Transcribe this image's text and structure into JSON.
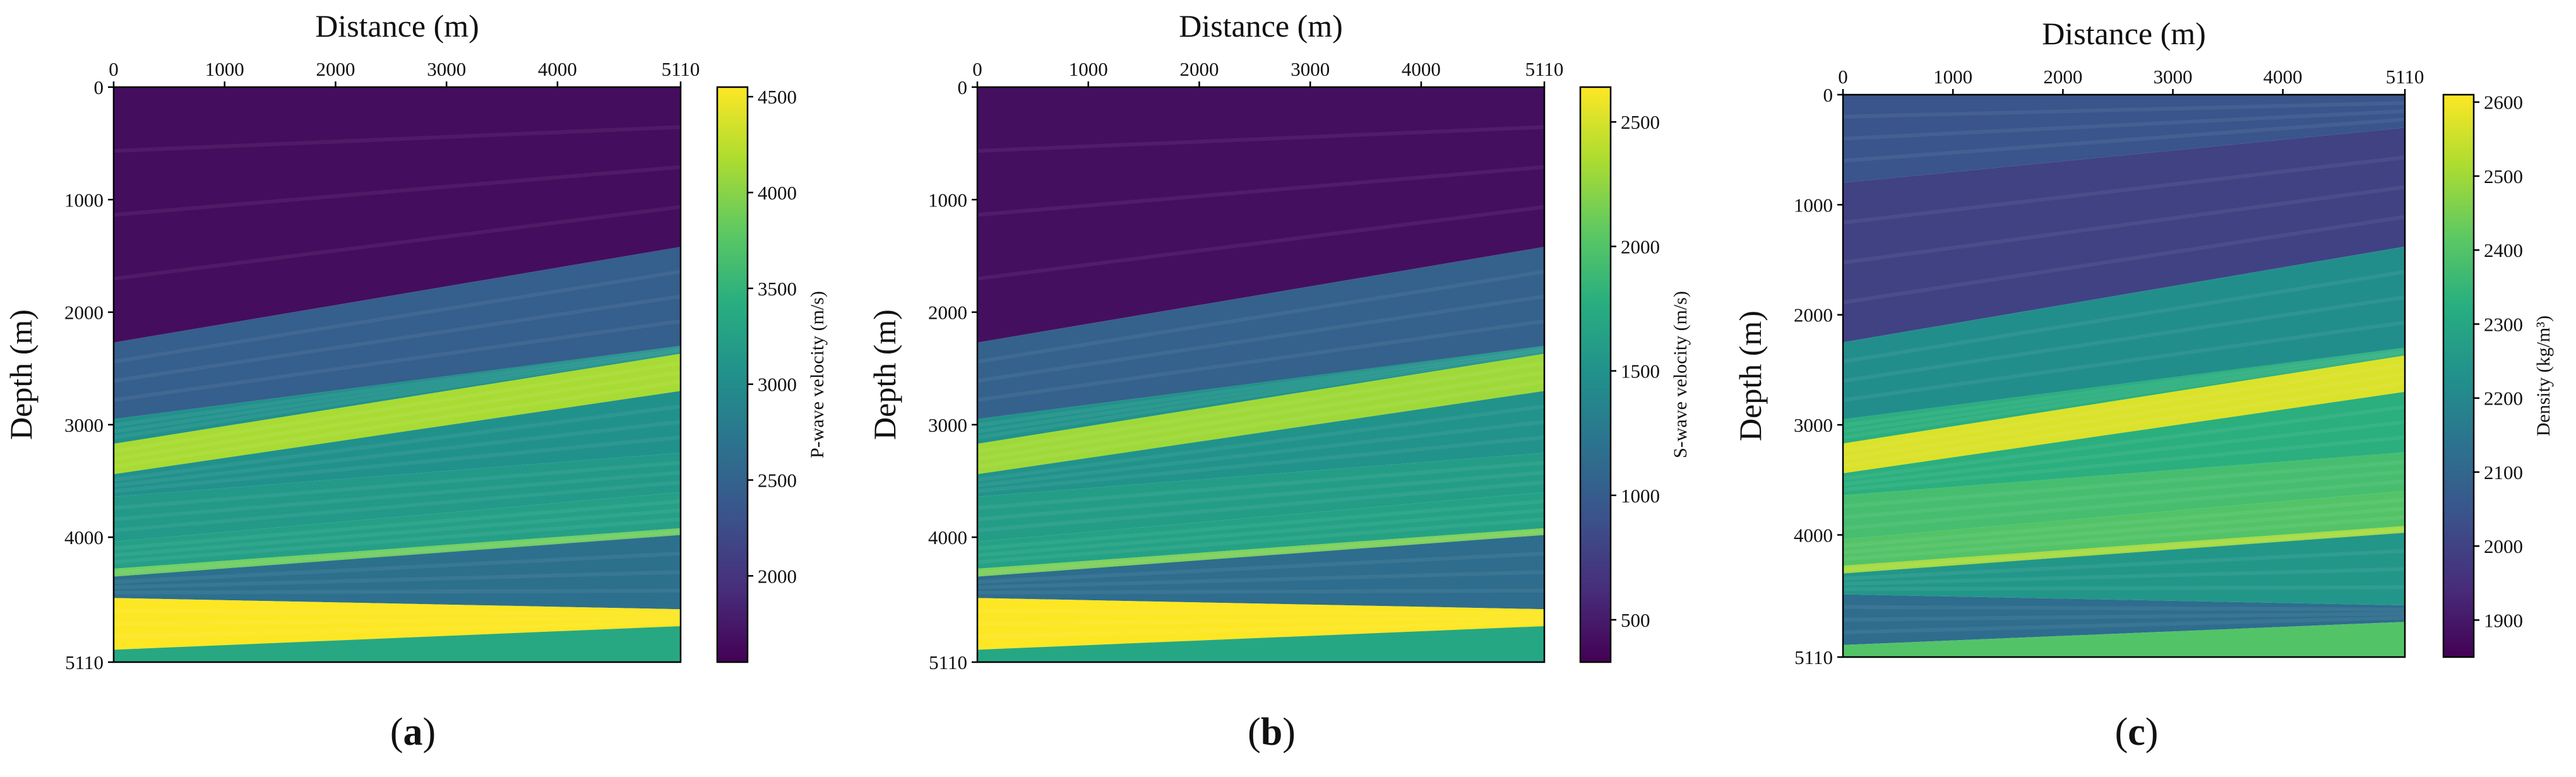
{
  "figure": {
    "panel_suffix": ")",
    "panel_prefix": "("
  },
  "chart_data": [
    {
      "type": "heatmap",
      "panel": "a",
      "title": "",
      "xlabel": "Distance (m)",
      "ylabel": "Depth (m)",
      "colorbar_label": "P-wave velocity (m/s)",
      "xlim": [
        0,
        5110
      ],
      "ylim": [
        5110,
        0
      ],
      "x_ticks": [
        0,
        1000,
        2000,
        3000,
        4000,
        5110
      ],
      "y_ticks": [
        0,
        1000,
        2000,
        3000,
        4000,
        5110
      ],
      "clim": [
        1550,
        4550
      ],
      "colorbar_ticks": [
        2000,
        2500,
        3000,
        3500,
        4000,
        4500
      ],
      "colormap": "viridis",
      "layers": [
        {
          "top_left": 0,
          "top_right": 0,
          "value": 1650
        },
        {
          "top_left": 2270,
          "top_right": 1420,
          "value": 2450
        },
        {
          "top_left": 2950,
          "top_right": 2300,
          "value": 3050
        },
        {
          "top_left": 3170,
          "top_right": 2370,
          "value": 4150
        },
        {
          "top_left": 3440,
          "top_right": 2700,
          "value": 3050
        },
        {
          "top_left": 3640,
          "top_right": 3250,
          "value": 3150
        },
        {
          "top_left": 4040,
          "top_right": 3600,
          "value": 3250
        },
        {
          "top_left": 4280,
          "top_right": 3920,
          "value": 3850
        },
        {
          "top_left": 4350,
          "top_right": 3980,
          "value": 2650
        },
        {
          "top_left": 4540,
          "top_right": 4640,
          "value": 4550
        },
        {
          "top_left": 5000,
          "top_right": 4790,
          "value": 3350
        }
      ]
    },
    {
      "type": "heatmap",
      "panel": "b",
      "title": "",
      "xlabel": "Distance (m)",
      "ylabel": "Depth (m)",
      "colorbar_label": "S-wave velocity (m/s)",
      "xlim": [
        0,
        5110
      ],
      "ylim": [
        5110,
        0
      ],
      "x_ticks": [
        0,
        1000,
        2000,
        3000,
        4000,
        5110
      ],
      "y_ticks": [
        0,
        1000,
        2000,
        3000,
        4000,
        5110
      ],
      "clim": [
        330,
        2640
      ],
      "colorbar_ticks": [
        500,
        1000,
        1500,
        2000,
        2500
      ],
      "colormap": "viridis",
      "layers": [
        {
          "top_left": 0,
          "top_right": 0,
          "value": 420
        },
        {
          "top_left": 2270,
          "top_right": 1420,
          "value": 1050
        },
        {
          "top_left": 2950,
          "top_right": 2300,
          "value": 1500
        },
        {
          "top_left": 3170,
          "top_right": 2370,
          "value": 2300
        },
        {
          "top_left": 3440,
          "top_right": 2700,
          "value": 1500
        },
        {
          "top_left": 3640,
          "top_right": 3250,
          "value": 1600
        },
        {
          "top_left": 4040,
          "top_right": 3600,
          "value": 1650
        },
        {
          "top_left": 4280,
          "top_right": 3920,
          "value": 2150
        },
        {
          "top_left": 4350,
          "top_right": 3980,
          "value": 1150
        },
        {
          "top_left": 4540,
          "top_right": 4640,
          "value": 2640
        },
        {
          "top_left": 5000,
          "top_right": 4790,
          "value": 1700
        }
      ]
    },
    {
      "type": "heatmap",
      "panel": "c",
      "title": "",
      "xlabel": "Distance (m)",
      "ylabel": "Depth (m)",
      "colorbar_label": "Density (kg/m³)",
      "xlim": [
        0,
        5110
      ],
      "ylim": [
        5110,
        0
      ],
      "x_ticks": [
        0,
        1000,
        2000,
        3000,
        4000,
        5110
      ],
      "y_ticks": [
        0,
        1000,
        2000,
        3000,
        4000,
        5110
      ],
      "clim": [
        1850,
        2610
      ],
      "colorbar_ticks": [
        1900,
        2000,
        2100,
        2200,
        2300,
        2400,
        2500,
        2600
      ],
      "colormap": "viridis",
      "layers": [
        {
          "top_left": 0,
          "top_right": 0,
          "value": 2050
        },
        {
          "top_left": 800,
          "top_right": 300,
          "value": 2000
        },
        {
          "top_left": 2250,
          "top_right": 1380,
          "value": 2220
        },
        {
          "top_left": 2950,
          "top_right": 2300,
          "value": 2330
        },
        {
          "top_left": 3170,
          "top_right": 2370,
          "value": 2570
        },
        {
          "top_left": 3440,
          "top_right": 2700,
          "value": 2330
        },
        {
          "top_left": 3640,
          "top_right": 3250,
          "value": 2380
        },
        {
          "top_left": 4040,
          "top_right": 3600,
          "value": 2400
        },
        {
          "top_left": 4280,
          "top_right": 3920,
          "value": 2500
        },
        {
          "top_left": 4350,
          "top_right": 3980,
          "value": 2250
        },
        {
          "top_left": 4540,
          "top_right": 4640,
          "value": 2120
        },
        {
          "top_left": 5000,
          "top_right": 4790,
          "value": 2400
        }
      ]
    }
  ]
}
